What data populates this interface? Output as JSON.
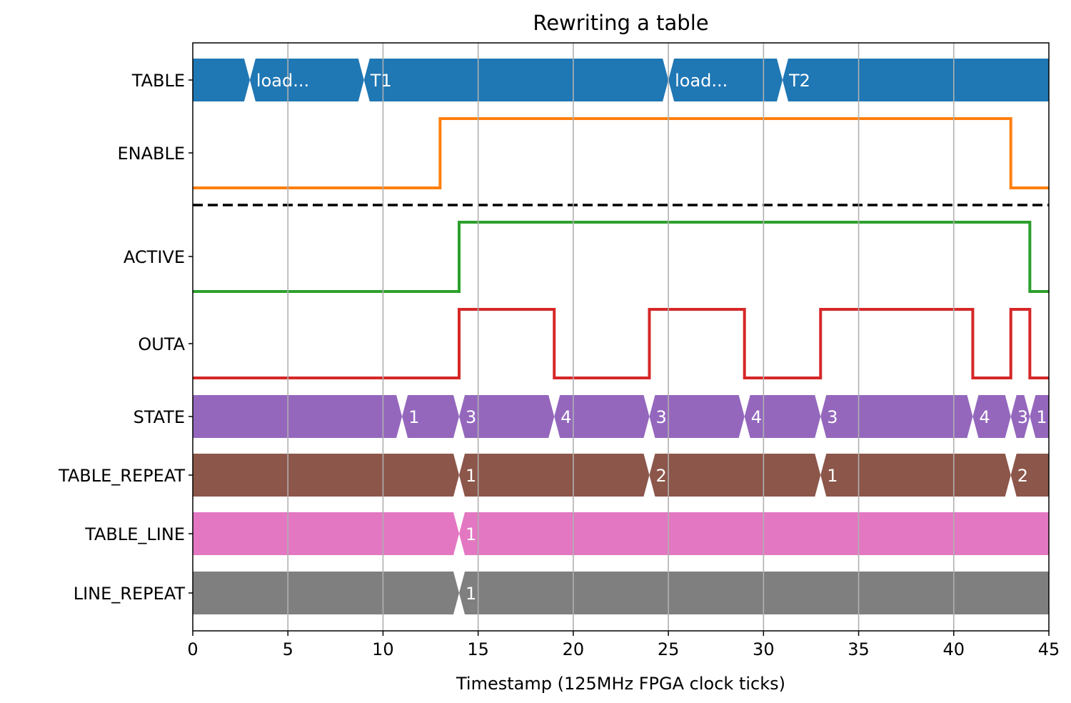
{
  "chart_data": {
    "type": "timing",
    "title": "Rewriting a table",
    "xlabel": "Timestamp (125MHz FPGA clock ticks)",
    "xlim": [
      0,
      45
    ],
    "xticks": [
      "0",
      "5",
      "10",
      "15",
      "20",
      "25",
      "30",
      "35",
      "40",
      "45"
    ],
    "xtick_values": [
      0,
      5,
      10,
      15,
      20,
      25,
      30,
      35,
      40,
      45
    ],
    "grid": "vertical",
    "separator_after": "ENABLE",
    "signals": [
      {
        "name": "TABLE",
        "kind": "bus",
        "color": "#1f77b4",
        "segments": [
          {
            "start": 0,
            "end": 3,
            "label": ""
          },
          {
            "start": 3,
            "end": 9,
            "label": "load..."
          },
          {
            "start": 9,
            "end": 25,
            "label": "T1"
          },
          {
            "start": 25,
            "end": 31,
            "label": "load..."
          },
          {
            "start": 31,
            "end": 45,
            "label": "T2"
          }
        ]
      },
      {
        "name": "ENABLE",
        "kind": "bit",
        "color": "#ff7f0e",
        "x": [
          0,
          13,
          43,
          45
        ],
        "y": [
          0,
          1,
          0,
          0
        ]
      },
      {
        "name": "ACTIVE",
        "kind": "bit",
        "color": "#2ca02c",
        "x": [
          0,
          14,
          44,
          45
        ],
        "y": [
          0,
          1,
          0,
          0
        ]
      },
      {
        "name": "OUTA",
        "kind": "bit",
        "color": "#d62728",
        "x": [
          0,
          14,
          19,
          24,
          29,
          33,
          41,
          43,
          44,
          45
        ],
        "y": [
          0,
          1,
          0,
          1,
          0,
          1,
          0,
          1,
          0,
          0
        ]
      },
      {
        "name": "STATE",
        "kind": "bus",
        "color": "#9467bd",
        "segments": [
          {
            "start": 0,
            "end": 11,
            "label": ""
          },
          {
            "start": 11,
            "end": 14,
            "label": "1"
          },
          {
            "start": 14,
            "end": 19,
            "label": "3"
          },
          {
            "start": 19,
            "end": 24,
            "label": "4"
          },
          {
            "start": 24,
            "end": 29,
            "label": "3"
          },
          {
            "start": 29,
            "end": 33,
            "label": "4"
          },
          {
            "start": 33,
            "end": 41,
            "label": "3"
          },
          {
            "start": 41,
            "end": 43,
            "label": "4"
          },
          {
            "start": 43,
            "end": 44,
            "label": "3"
          },
          {
            "start": 44,
            "end": 45,
            "label": "1"
          }
        ]
      },
      {
        "name": "TABLE_REPEAT",
        "kind": "bus",
        "color": "#8c564b",
        "segments": [
          {
            "start": 0,
            "end": 14,
            "label": ""
          },
          {
            "start": 14,
            "end": 24,
            "label": "1"
          },
          {
            "start": 24,
            "end": 33,
            "label": "2"
          },
          {
            "start": 33,
            "end": 43,
            "label": "1"
          },
          {
            "start": 43,
            "end": 45,
            "label": "2"
          }
        ]
      },
      {
        "name": "TABLE_LINE",
        "kind": "bus",
        "color": "#e377c2",
        "segments": [
          {
            "start": 0,
            "end": 14,
            "label": ""
          },
          {
            "start": 14,
            "end": 45,
            "label": "1"
          }
        ]
      },
      {
        "name": "LINE_REPEAT",
        "kind": "bus",
        "color": "#7f7f7f",
        "segments": [
          {
            "start": 0,
            "end": 14,
            "label": ""
          },
          {
            "start": 14,
            "end": 45,
            "label": "1"
          }
        ]
      }
    ]
  }
}
